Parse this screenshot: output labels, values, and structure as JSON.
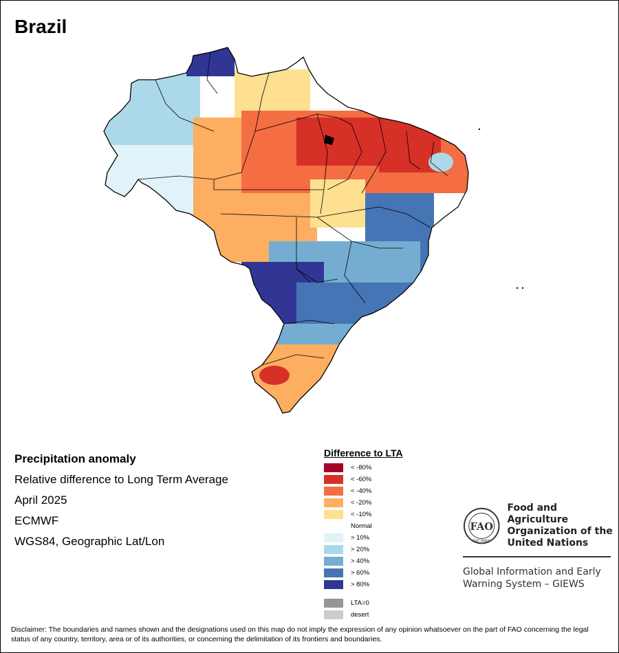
{
  "map": {
    "title": "Brazil",
    "subtitle_lines": [
      "Precipitation anomaly",
      "Relative difference to Long Term Average",
      "April 2025",
      "ECMWF",
      "WGS84, Geographic Lat/Lon"
    ]
  },
  "legend": {
    "title": "Difference to LTA",
    "items": [
      {
        "label": "< -80%",
        "color": "#a50026"
      },
      {
        "label": "< -60%",
        "color": "#d73027"
      },
      {
        "label": "< -40%",
        "color": "#f46d43"
      },
      {
        "label": "< -20%",
        "color": "#fdae61"
      },
      {
        "label": "< -10%",
        "color": "#fee090"
      },
      {
        "label": "Normal",
        "color": "#ffffff"
      },
      {
        "label": "> 10%",
        "color": "#e0f3f8"
      },
      {
        "label": "> 20%",
        "color": "#abd9e9"
      },
      {
        "label": "> 40%",
        "color": "#74add1"
      },
      {
        "label": "> 60%",
        "color": "#4575b4"
      },
      {
        "label": "> 80%",
        "color": "#313695"
      }
    ],
    "extra": [
      {
        "label": "LTA=0",
        "color": "#969696"
      },
      {
        "label": "desert",
        "color": "#cccccc"
      }
    ]
  },
  "logo": {
    "org_lines": [
      "Food and Agriculture",
      "Organization of the",
      "United Nations"
    ],
    "emblem_text": "FAO",
    "emblem_motto": "FIAT PANIS",
    "system_lines": [
      "Global Information and Early",
      "Warning System – GIEWS"
    ]
  },
  "disclaimer": "Disclaimer: The boundaries and names shown and the designations used on this map do not imply the expression of any opinion whatsoever on the part of FAO concerning the legal status of any country, territory, area or of its authorities, or concerning the delimitation of its frontiers and boundaries."
}
